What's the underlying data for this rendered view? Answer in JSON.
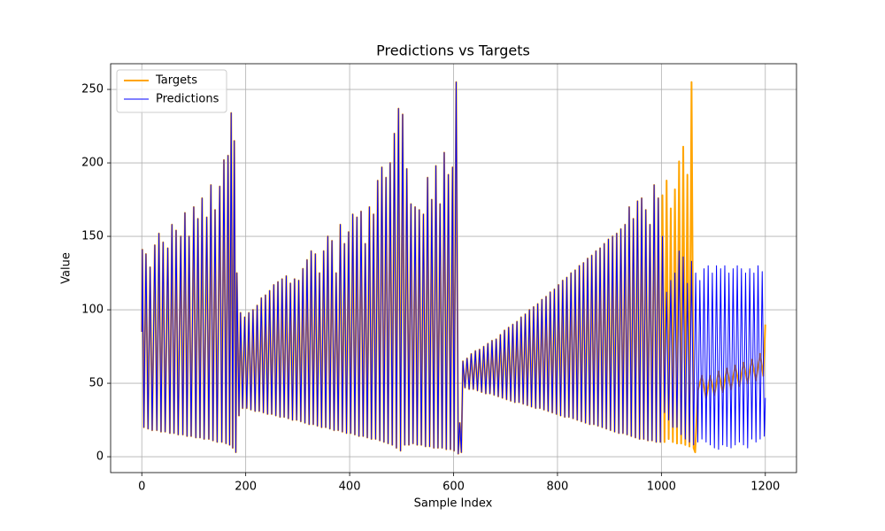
{
  "chart_data": {
    "type": "line",
    "title": "Predictions vs Targets",
    "x_label": "Sample Index",
    "y_label": "Value",
    "xlim": [
      -60,
      1260
    ],
    "ylim": [
      -10.8,
      267.5
    ],
    "xticks": [
      0,
      200,
      400,
      600,
      800,
      1000,
      1200
    ],
    "yticks": [
      0,
      50,
      100,
      150,
      200,
      250
    ],
    "grid": true,
    "legend": "upper left",
    "series": [
      {
        "name": "Targets",
        "color": "#ffa500",
        "width": 2,
        "x": [
          0,
          1,
          4,
          8,
          12,
          16,
          20,
          25,
          29,
          33,
          37,
          41,
          45,
          50,
          54,
          58,
          62,
          66,
          70,
          75,
          79,
          83,
          87,
          91,
          95,
          100,
          104,
          108,
          112,
          116,
          120,
          125,
          129,
          133,
          137,
          141,
          145,
          150,
          154,
          158,
          162,
          166,
          169,
          172,
          175,
          178,
          181,
          183,
          187,
          190,
          194,
          198,
          202,
          206,
          210,
          214,
          218,
          222,
          226,
          230,
          234,
          238,
          242,
          246,
          250,
          254,
          258,
          262,
          266,
          270,
          274,
          278,
          282,
          286,
          290,
          294,
          298,
          302,
          306,
          310,
          314,
          318,
          322,
          326,
          330,
          334,
          338,
          342,
          346,
          350,
          354,
          358,
          362,
          366,
          370,
          374,
          378,
          382,
          386,
          390,
          394,
          398,
          402,
          406,
          410,
          414,
          418,
          422,
          426,
          430,
          434,
          438,
          442,
          446,
          450,
          454,
          458,
          462,
          466,
          470,
          474,
          478,
          482,
          486,
          490,
          494,
          498,
          502,
          506,
          510,
          514,
          518,
          522,
          526,
          530,
          534,
          538,
          542,
          546,
          550,
          554,
          558,
          562,
          566,
          570,
          574,
          578,
          582,
          586,
          590,
          594,
          598,
          601,
          605,
          609,
          612,
          615,
          618,
          622,
          626,
          630,
          634,
          638,
          642,
          646,
          650,
          654,
          658,
          662,
          666,
          670,
          674,
          678,
          682,
          686,
          690,
          694,
          698,
          702,
          706,
          710,
          714,
          718,
          722,
          726,
          730,
          734,
          738,
          742,
          746,
          750,
          754,
          758,
          762,
          766,
          770,
          774,
          778,
          782,
          786,
          790,
          794,
          798,
          802,
          806,
          810,
          814,
          818,
          822,
          826,
          830,
          834,
          838,
          842,
          846,
          850,
          854,
          858,
          862,
          866,
          870,
          874,
          878,
          882,
          886,
          890,
          894,
          898,
          902,
          906,
          910,
          914,
          918,
          922,
          926,
          930,
          934,
          938,
          942,
          946,
          950,
          954,
          958,
          962,
          966,
          970,
          974,
          978,
          982,
          986,
          990,
          994,
          998,
          1002,
          1006,
          1010,
          1014,
          1018,
          1022,
          1026,
          1030,
          1034,
          1038,
          1042,
          1046,
          1050,
          1054,
          1058,
          1062,
          1065,
          1070,
          1078,
          1086,
          1094,
          1102,
          1110,
          1118,
          1126,
          1134,
          1142,
          1150,
          1158,
          1166,
          1174,
          1182,
          1190,
          1196,
          1200
        ],
        "values": [
          85,
          141,
          20,
          138,
          19,
          129,
          18,
          144,
          18,
          152,
          17,
          146,
          17,
          142,
          16,
          158,
          16,
          154,
          15,
          150,
          15,
          166,
          14,
          150,
          14,
          170,
          13,
          162,
          13,
          176,
          12,
          163,
          12,
          185,
          11,
          168,
          10,
          184,
          10,
          202,
          9,
          205,
          8,
          234,
          6,
          215,
          3,
          125,
          28,
          98,
          33,
          95,
          33,
          98,
          32,
          100,
          31,
          103,
          31,
          108,
          30,
          110,
          29,
          113,
          29,
          117,
          28,
          119,
          27,
          121,
          27,
          123,
          26,
          118,
          25,
          121,
          25,
          120,
          24,
          128,
          23,
          134,
          22,
          140,
          22,
          138,
          21,
          125,
          20,
          140,
          20,
          150,
          19,
          147,
          18,
          125,
          18,
          158,
          17,
          145,
          16,
          153,
          16,
          165,
          15,
          163,
          14,
          167,
          14,
          145,
          13,
          170,
          12,
          165,
          12,
          188,
          11,
          197,
          10,
          190,
          9,
          200,
          8,
          220,
          6,
          237,
          4,
          233,
          8,
          196,
          8,
          172,
          9,
          170,
          8,
          168,
          8,
          165,
          7,
          190,
          7,
          175,
          6,
          198,
          6,
          172,
          6,
          207,
          5,
          192,
          5,
          197,
          4,
          255,
          2,
          23,
          3,
          65,
          47,
          67,
          46,
          70,
          46,
          72,
          45,
          73,
          44,
          75,
          43,
          77,
          43,
          79,
          42,
          80,
          41,
          83,
          40,
          86,
          39,
          88,
          38,
          90,
          37,
          92,
          37,
          95,
          36,
          97,
          35,
          100,
          34,
          102,
          33,
          104,
          33,
          107,
          32,
          109,
          31,
          112,
          30,
          114,
          29,
          117,
          28,
          120,
          27,
          122,
          27,
          125,
          26,
          127,
          25,
          130,
          24,
          132,
          23,
          135,
          22,
          137,
          22,
          140,
          21,
          142,
          20,
          145,
          19,
          148,
          18,
          150,
          17,
          152,
          16,
          155,
          16,
          158,
          15,
          170,
          14,
          162,
          13,
          174,
          12,
          176,
          12,
          168,
          11,
          158,
          11,
          185,
          10,
          176,
          10,
          178,
          10,
          188,
          12,
          169,
          10,
          182,
          9,
          201,
          9,
          211,
          8,
          192,
          7,
          255,
          6,
          3,
          45,
          55,
          40,
          55,
          42,
          58,
          44,
          60,
          46,
          62,
          48,
          64,
          50,
          66,
          52,
          70,
          55,
          90
        ]
      },
      {
        "name": "Predictions",
        "color": "#0000ff",
        "width": 1,
        "x": [
          0,
          1,
          4,
          8,
          12,
          16,
          20,
          25,
          29,
          33,
          37,
          41,
          45,
          50,
          54,
          58,
          62,
          66,
          70,
          75,
          79,
          83,
          87,
          91,
          95,
          100,
          104,
          108,
          112,
          116,
          120,
          125,
          129,
          133,
          137,
          141,
          145,
          150,
          154,
          158,
          162,
          166,
          169,
          172,
          175,
          178,
          181,
          183,
          187,
          190,
          194,
          198,
          202,
          206,
          210,
          214,
          218,
          222,
          226,
          230,
          234,
          238,
          242,
          246,
          250,
          254,
          258,
          262,
          266,
          270,
          274,
          278,
          282,
          286,
          290,
          294,
          298,
          302,
          306,
          310,
          314,
          318,
          322,
          326,
          330,
          334,
          338,
          342,
          346,
          350,
          354,
          358,
          362,
          366,
          370,
          374,
          378,
          382,
          386,
          390,
          394,
          398,
          402,
          406,
          410,
          414,
          418,
          422,
          426,
          430,
          434,
          438,
          442,
          446,
          450,
          454,
          458,
          462,
          466,
          470,
          474,
          478,
          482,
          486,
          490,
          494,
          498,
          502,
          506,
          510,
          514,
          518,
          522,
          526,
          530,
          534,
          538,
          542,
          546,
          550,
          554,
          558,
          562,
          566,
          570,
          574,
          578,
          582,
          586,
          590,
          594,
          598,
          601,
          605,
          609,
          612,
          615,
          618,
          622,
          626,
          630,
          634,
          638,
          642,
          646,
          650,
          654,
          658,
          662,
          666,
          670,
          674,
          678,
          682,
          686,
          690,
          694,
          698,
          702,
          706,
          710,
          714,
          718,
          722,
          726,
          730,
          734,
          738,
          742,
          746,
          750,
          754,
          758,
          762,
          766,
          770,
          774,
          778,
          782,
          786,
          790,
          794,
          798,
          802,
          806,
          810,
          814,
          818,
          822,
          826,
          830,
          834,
          838,
          842,
          846,
          850,
          854,
          858,
          862,
          866,
          870,
          874,
          878,
          882,
          886,
          890,
          894,
          898,
          902,
          906,
          910,
          914,
          918,
          922,
          926,
          930,
          934,
          938,
          942,
          946,
          950,
          954,
          958,
          962,
          966,
          970,
          974,
          978,
          982,
          986,
          990,
          994,
          998,
          1002,
          1006,
          1010,
          1014,
          1018,
          1022,
          1026,
          1030,
          1034,
          1038,
          1042,
          1046,
          1050,
          1054,
          1058,
          1062,
          1066,
          1070,
          1074,
          1078,
          1082,
          1086,
          1090,
          1094,
          1098,
          1102,
          1106,
          1110,
          1114,
          1118,
          1122,
          1126,
          1130,
          1134,
          1138,
          1142,
          1146,
          1150,
          1154,
          1158,
          1162,
          1166,
          1170,
          1174,
          1178,
          1182,
          1186,
          1190,
          1194,
          1198,
          1200
        ],
        "values": [
          85,
          141,
          20,
          138,
          19,
          129,
          18,
          144,
          18,
          152,
          17,
          146,
          17,
          142,
          16,
          158,
          16,
          154,
          15,
          150,
          15,
          166,
          14,
          150,
          14,
          170,
          13,
          162,
          13,
          176,
          12,
          163,
          12,
          185,
          11,
          168,
          10,
          184,
          10,
          202,
          9,
          205,
          8,
          234,
          6,
          215,
          3,
          125,
          28,
          98,
          33,
          95,
          33,
          98,
          32,
          100,
          31,
          103,
          31,
          108,
          30,
          110,
          29,
          113,
          29,
          117,
          28,
          119,
          27,
          121,
          27,
          123,
          26,
          118,
          25,
          121,
          25,
          120,
          24,
          128,
          23,
          134,
          22,
          140,
          22,
          138,
          21,
          125,
          20,
          140,
          20,
          150,
          19,
          147,
          18,
          125,
          18,
          158,
          17,
          145,
          16,
          153,
          16,
          165,
          15,
          163,
          14,
          167,
          14,
          145,
          13,
          170,
          12,
          165,
          12,
          188,
          11,
          197,
          10,
          190,
          9,
          200,
          8,
          220,
          6,
          237,
          4,
          233,
          8,
          196,
          8,
          172,
          9,
          170,
          8,
          168,
          8,
          165,
          7,
          190,
          7,
          175,
          6,
          198,
          6,
          172,
          6,
          207,
          5,
          192,
          5,
          197,
          4,
          255,
          2,
          23,
          3,
          65,
          47,
          67,
          46,
          70,
          46,
          72,
          45,
          73,
          44,
          75,
          43,
          77,
          43,
          79,
          42,
          80,
          41,
          83,
          40,
          86,
          39,
          88,
          38,
          90,
          37,
          92,
          37,
          95,
          36,
          97,
          35,
          100,
          34,
          102,
          33,
          104,
          33,
          107,
          32,
          109,
          31,
          112,
          30,
          114,
          29,
          117,
          28,
          120,
          27,
          122,
          27,
          125,
          26,
          127,
          25,
          130,
          24,
          132,
          23,
          135,
          22,
          137,
          22,
          140,
          21,
          142,
          20,
          145,
          19,
          148,
          18,
          150,
          17,
          152,
          16,
          155,
          16,
          158,
          15,
          170,
          14,
          162,
          13,
          174,
          12,
          176,
          12,
          168,
          11,
          158,
          11,
          185,
          10,
          176,
          10,
          150,
          30,
          112,
          25,
          120,
          20,
          125,
          20,
          140,
          15,
          136,
          12,
          118,
          10,
          133,
          8,
          125,
          10,
          120,
          12,
          128,
          10,
          130,
          8,
          125,
          6,
          130,
          5,
          128,
          8,
          130,
          7,
          125,
          6,
          128,
          8,
          130,
          10,
          128,
          8,
          125,
          6,
          128,
          12,
          125,
          10,
          130,
          12,
          126,
          14,
          40
        ]
      }
    ]
  }
}
